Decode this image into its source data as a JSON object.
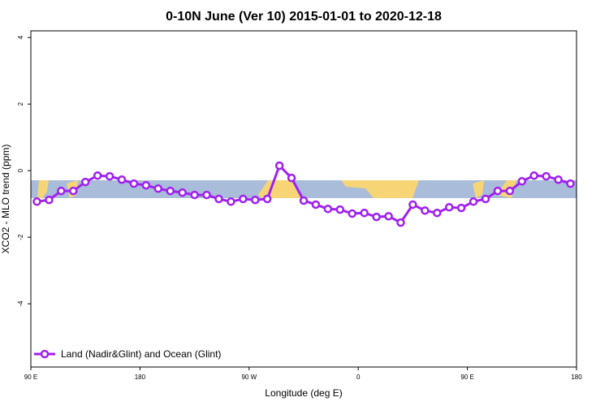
{
  "chart_data": {
    "type": "line",
    "title": "0-10N June (Ver 10)   2015-01-01 to 2020-12-18",
    "x_label": "Longitude (deg E)",
    "y_label": "XCO2 - MLO trend (ppm)",
    "xlim": [
      90,
      540
    ],
    "ylim": [
      -5.9,
      4.2
    ],
    "xticks": [
      {
        "value": 90,
        "label": "90 E"
      },
      180,
      {
        "value": 270,
        "label": "90 W"
      },
      {
        "value": 360,
        "label": "0"
      },
      {
        "value": 450,
        "label": "90 E"
      },
      {
        "value": 540,
        "label": "180"
      }
    ],
    "yticks": [
      -4,
      -2,
      0,
      2,
      4
    ],
    "legend_position": "bottom-left",
    "series": [
      {
        "name": "Land (Nadir&Glint) and Ocean (Glint)",
        "color": "#a020f0",
        "x": [
          95,
          105,
          115,
          125,
          135,
          145,
          155,
          165,
          175,
          185,
          195,
          205,
          215,
          225,
          235,
          245,
          255,
          265,
          275,
          285,
          295,
          305,
          315,
          325,
          335,
          345,
          355,
          365,
          375,
          385,
          395,
          405,
          415,
          425,
          435,
          445,
          455,
          465,
          475,
          485,
          495,
          505,
          515,
          525,
          535
        ],
        "values": [
          -0.93,
          -0.88,
          -0.61,
          -0.61,
          -0.34,
          -0.15,
          -0.17,
          -0.27,
          -0.39,
          -0.44,
          -0.54,
          -0.61,
          -0.66,
          -0.73,
          -0.73,
          -0.85,
          -0.93,
          -0.85,
          -0.88,
          -0.85,
          0.15,
          -0.22,
          -0.9,
          -1.02,
          -1.15,
          -1.17,
          -1.29,
          -1.27,
          -1.39,
          -1.37,
          -1.56,
          -1.02,
          -1.2,
          -1.27,
          -1.1,
          -1.12,
          -0.93,
          -0.85,
          -0.61,
          -0.61,
          -0.32,
          -0.15,
          -0.17,
          -0.27,
          -0.39
        ]
      }
    ]
  }
}
